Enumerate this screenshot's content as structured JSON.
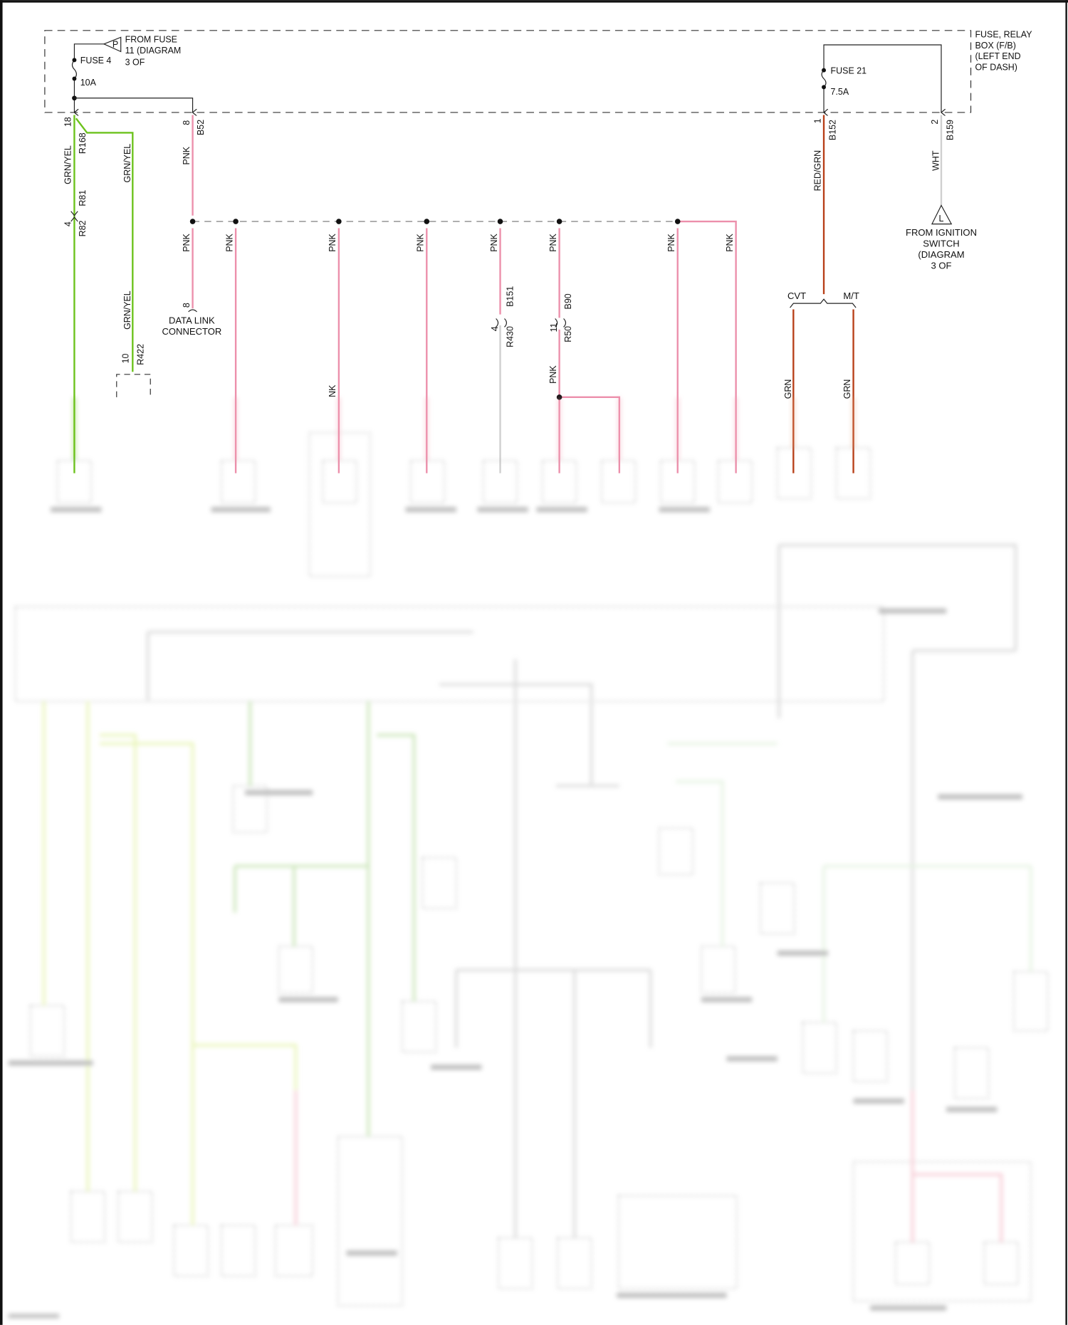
{
  "fuse_box": {
    "label_lines": [
      "FUSE, RELAY",
      "BOX (F/B)",
      "(LEFT END",
      "OF DASH)"
    ]
  },
  "fuse4": {
    "name": "FUSE 4",
    "rating": "10A",
    "source_symbol": "P",
    "source_lines": [
      "FROM FUSE",
      "11 (DIAGRAM",
      "3 OF"
    ]
  },
  "fuse21": {
    "name": "FUSE 21",
    "rating": "7.5A"
  },
  "ignition": {
    "symbol": "L",
    "lines": [
      "FROM IGNITION",
      "SWITCH",
      "(DIAGRAM",
      "3 OF"
    ]
  },
  "data_link": {
    "lines": [
      "DATA LINK",
      "CONNECTOR"
    ]
  },
  "wires": {
    "grn_yel": "GRN/YEL",
    "pnk": "PNK",
    "red_grn": "RED/GRN",
    "wht": "WHT",
    "grn": "GRN",
    "nk_partial": "NK"
  },
  "variants": {
    "cvt": "CVT",
    "mt": "M/T"
  },
  "connectors": {
    "c18": "18",
    "r168": "R168",
    "r81": "R81",
    "c4a": "4",
    "r82": "R82",
    "c10": "10",
    "r422": "R422",
    "c8a": "8",
    "b52": "B52",
    "c8b": "8",
    "b151": "B151",
    "c4b": "4",
    "r430": "R430",
    "b90": "B90",
    "c11": "11",
    "r50": "R50",
    "c1": "1",
    "b152": "B152",
    "c2": "2",
    "b159": "B159"
  },
  "colors": {
    "grn_yel": "#6cc21c",
    "pnk": "#ec8fab",
    "red_grn": "#b8401a",
    "wht": "#cfcfcf",
    "bus": "#aaaaaa",
    "line": "#222222"
  }
}
